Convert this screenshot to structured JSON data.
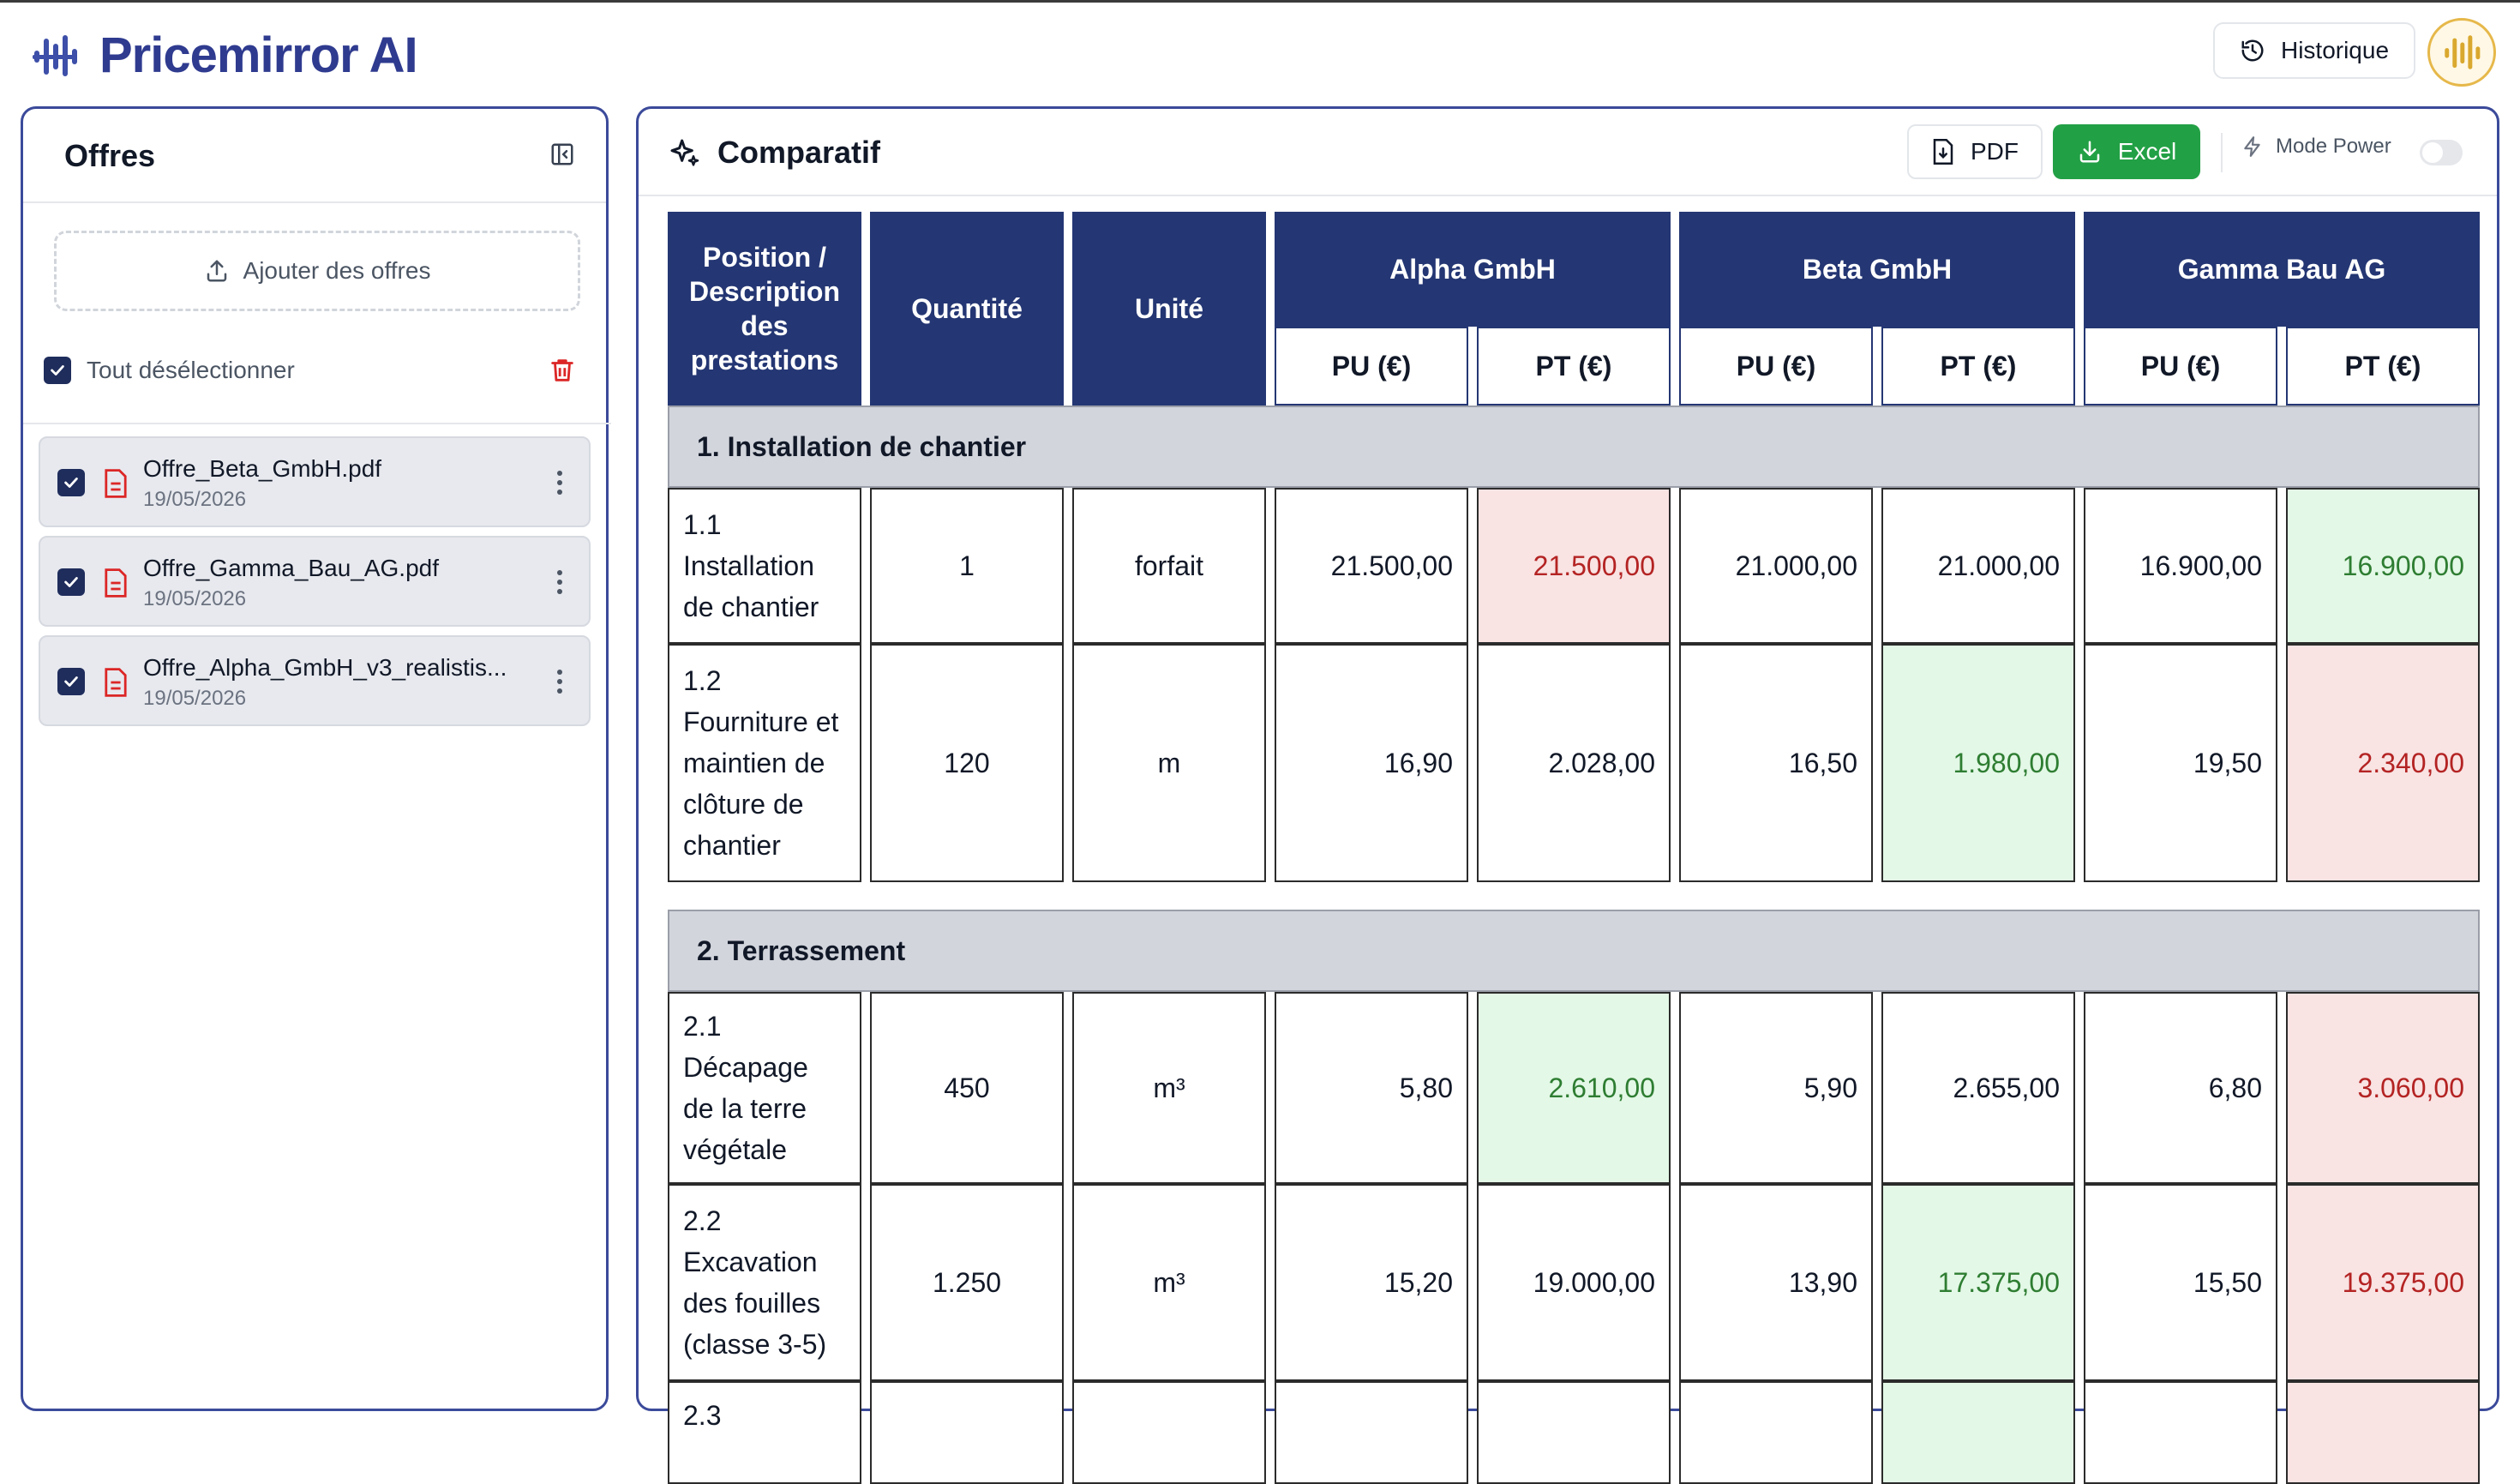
{
  "app": {
    "brand": "Pricemirror AI",
    "history_label": "Historique"
  },
  "sidebar": {
    "title": "Offres",
    "upload_label": "Ajouter des offres",
    "select_all_label": "Tout désélectionner",
    "files": [
      {
        "name": "Offre_Beta_GmbH.pdf",
        "date": "19/05/2026"
      },
      {
        "name": "Offre_Gamma_Bau_AG.pdf",
        "date": "19/05/2026"
      },
      {
        "name": "Offre_Alpha_GmbH_v3_realistis...",
        "date": "19/05/2026"
      }
    ]
  },
  "main": {
    "title": "Comparatif",
    "pdf_label": "PDF",
    "excel_label": "Excel",
    "power_label": "Mode Power",
    "colors": {
      "accent": "#243673",
      "excel": "#22a045",
      "low": "#e3f8e6",
      "high": "#f9e3e3"
    }
  },
  "table": {
    "headers": {
      "position": "Position / Description des prestations",
      "quantity": "Quantité",
      "unit": "Unité",
      "pu": "PU (€)",
      "pt": "PT (€)"
    },
    "vendors": [
      "Alpha GmbH",
      "Beta GmbH",
      "Gamma Bau AG"
    ],
    "sections": [
      {
        "title": "1. Installation de chantier",
        "rows": [
          {
            "desc": "1.1 Installation de chantier",
            "qty": "1",
            "unit": "forfait",
            "a_pu": "21.500,00",
            "a_pt": "21.500,00",
            "b_pu": "21.000,00",
            "b_pt": "21.000,00",
            "g_pu": "16.900,00",
            "g_pt": "16.900,00"
          },
          {
            "desc": "1.2 Fourniture et maintien de clôture de chantier",
            "qty": "120",
            "unit": "m",
            "a_pu": "16,90",
            "a_pt": "2.028,00",
            "b_pu": "16,50",
            "b_pt": "1.980,00",
            "g_pu": "19,50",
            "g_pt": "2.340,00"
          }
        ]
      },
      {
        "title": "2. Terrassement",
        "rows": [
          {
            "desc": "2.1 Décapage de la terre végétale",
            "qty": "450",
            "unit": "m³",
            "a_pu": "5,80",
            "a_pt": "2.610,00",
            "b_pu": "5,90",
            "b_pt": "2.655,00",
            "g_pu": "6,80",
            "g_pt": "3.060,00"
          },
          {
            "desc": "2.2 Excavation des fouilles (classe 3-5)",
            "qty": "1.250",
            "unit": "m³",
            "a_pu": "15,20",
            "a_pt": "19.000,00",
            "b_pu": "13,90",
            "b_pt": "17.375,00",
            "g_pu": "15,50",
            "g_pt": "19.375,00"
          },
          {
            "desc": "2.3",
            "qty": "",
            "unit": "",
            "a_pu": "",
            "a_pt": "",
            "b_pu": "",
            "b_pt": "",
            "g_pu": "",
            "g_pt": ""
          }
        ]
      }
    ]
  }
}
